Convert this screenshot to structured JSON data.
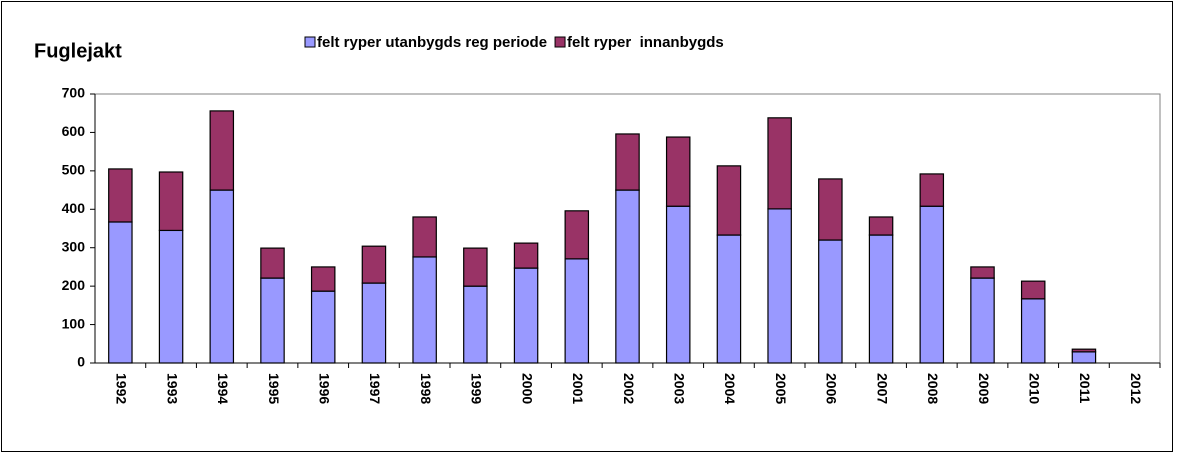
{
  "chart_data": {
    "type": "stacked_bar",
    "title": "Fuglejakt",
    "categories": [
      "1992",
      "1993",
      "1994",
      "1995",
      "1996",
      "1997",
      "1998",
      "1999",
      "2000",
      "2001",
      "2002",
      "2003",
      "2004",
      "2005",
      "2006",
      "2007",
      "2008",
      "2009",
      "2010",
      "2011",
      "2012"
    ],
    "series": [
      {
        "name": "felt ryper utanbygds reg periode",
        "color": "#9999ff",
        "values": [
          367,
          345,
          450,
          221,
          187,
          208,
          276,
          200,
          247,
          271,
          450,
          408,
          333,
          401,
          320,
          333,
          408,
          221,
          167,
          29,
          null
        ]
      },
      {
        "name": "felt ryper  innanbygds",
        "color": "#993366",
        "values": [
          138,
          152,
          206,
          78,
          63,
          96,
          104,
          99,
          65,
          125,
          146,
          180,
          180,
          237,
          159,
          47,
          84,
          29,
          46,
          7,
          null
        ]
      }
    ],
    "ylim": [
      0,
      700
    ],
    "yticks": [
      0,
      100,
      200,
      300,
      400,
      500,
      600,
      700
    ],
    "grid": false,
    "legend": "top"
  }
}
